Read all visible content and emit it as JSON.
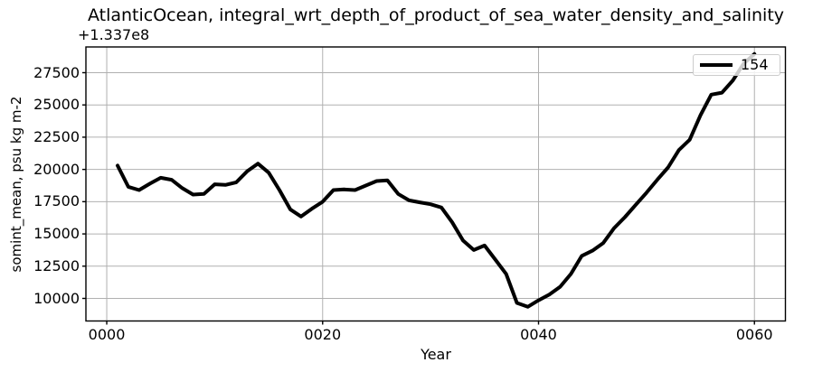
{
  "figure": {
    "title": "AtlanticOcean, integral_wrt_depth_of_product_of_sea_water_density_and_salinity",
    "offset_text": "+1.337e8",
    "colors": {
      "line": "#000000",
      "grid": "#b0b0b0",
      "spine": "#000000",
      "background": "#ffffff",
      "legend_border": "#cccccc"
    }
  },
  "chart_data": {
    "type": "line",
    "title": "AtlanticOcean, integral_wrt_depth_of_product_of_sea_water_density_and_salinity",
    "xlabel": "Year",
    "ylabel": "somint_mean, psu kg m-2",
    "y_axis_offset_text": "+1.337e8",
    "grid": true,
    "legend_position": "upper right",
    "xlim": [
      -1.93,
      62.87
    ],
    "ylim": [
      8250,
      29495
    ],
    "xticks": {
      "values": [
        0,
        20,
        40,
        60
      ],
      "labels": [
        "0000",
        "0020",
        "0040",
        "0060"
      ]
    },
    "yticks": {
      "values": [
        10000,
        12500,
        15000,
        17500,
        20000,
        22500,
        25000,
        27500
      ],
      "labels": [
        "10000",
        "12500",
        "15000",
        "17500",
        "20000",
        "22500",
        "25000",
        "27500"
      ]
    },
    "series": [
      {
        "name": "154",
        "x": [
          1,
          2,
          3,
          4,
          5,
          6,
          7,
          8,
          9,
          10,
          11,
          12,
          13,
          14,
          15,
          16,
          17,
          18,
          19,
          20,
          21,
          22,
          23,
          24,
          25,
          26,
          27,
          28,
          29,
          30,
          31,
          32,
          33,
          34,
          35,
          36,
          37,
          38,
          39,
          40,
          41,
          42,
          43,
          44,
          45,
          46,
          47,
          48,
          49,
          50,
          51,
          52,
          53,
          54,
          55,
          56,
          57,
          58,
          59,
          60
        ],
        "values": [
          20300,
          18650,
          18400,
          18900,
          19350,
          19200,
          18550,
          18050,
          18100,
          18850,
          18800,
          19000,
          19850,
          20450,
          19750,
          18400,
          16900,
          16350,
          16950,
          17500,
          18400,
          18450,
          18400,
          18750,
          19100,
          19150,
          18100,
          17600,
          17450,
          17300,
          17050,
          15900,
          14500,
          13750,
          14100,
          13000,
          11900,
          9650,
          9350,
          9850,
          10300,
          10900,
          11900,
          13300,
          13700,
          14300,
          15450,
          16300,
          17250,
          18200,
          19200,
          20150,
          21500,
          22300,
          24200,
          25800,
          25950,
          26900,
          28200,
          28950
        ]
      }
    ]
  }
}
